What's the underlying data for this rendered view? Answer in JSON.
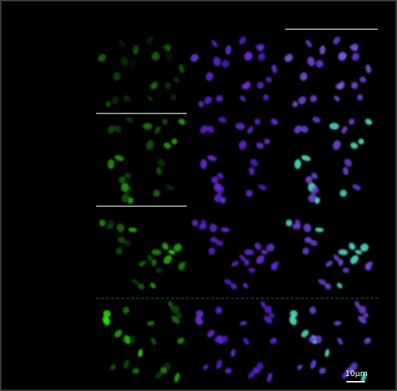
{
  "scale_bar": {
    "label": "10μm"
  }
}
